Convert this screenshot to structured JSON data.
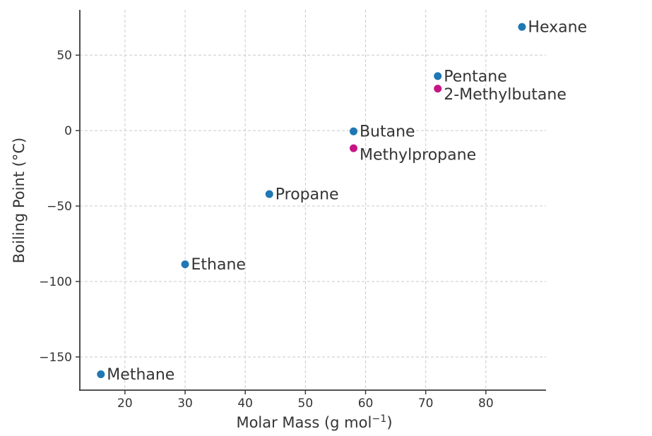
{
  "chart_data": {
    "type": "scatter",
    "title": "",
    "xlabel_full": "Molar Mass (g mol−1)",
    "xlabel_main": "Molar Mass (g mol",
    "xlabel_sup": "−1",
    "xlabel_close": ")",
    "ylabel": "Boiling Point (°C)",
    "xlim": [
      12.5,
      90
    ],
    "ylim": [
      -172,
      80
    ],
    "grid": true,
    "grid_on": "both",
    "legend": "none",
    "grid_color": "#c9c9c9",
    "axis_color": "#3a3a3a",
    "text_color": "#343434",
    "background_color": "#ffffff",
    "marker_radius_px": 5.5,
    "series_colors": {
      "straight_chain": "#1f77b4",
      "branched": "#c71585"
    },
    "x_ticks": [
      {
        "value": 20,
        "label": "20"
      },
      {
        "value": 30,
        "label": "30"
      },
      {
        "value": 40,
        "label": "40"
      },
      {
        "value": 50,
        "label": "50"
      },
      {
        "value": 60,
        "label": "60"
      },
      {
        "value": 70,
        "label": "70"
      },
      {
        "value": 80,
        "label": "80"
      }
    ],
    "y_ticks": [
      {
        "value": 50,
        "label": "50"
      },
      {
        "value": 0,
        "label": "0"
      },
      {
        "value": -50,
        "label": "−50"
      },
      {
        "value": -100,
        "label": "−100"
      },
      {
        "value": -150,
        "label": "−150"
      }
    ],
    "points": [
      {
        "label": "Methane",
        "molar_mass": 16,
        "boiling_point": -161.5,
        "group": "straight_chain",
        "color": "#1f77b4",
        "label_dy": 0
      },
      {
        "label": "Ethane",
        "molar_mass": 30,
        "boiling_point": -88.6,
        "group": "straight_chain",
        "color": "#1f77b4",
        "label_dy": 0
      },
      {
        "label": "Propane",
        "molar_mass": 44,
        "boiling_point": -42.1,
        "group": "straight_chain",
        "color": "#1f77b4",
        "label_dy": 0
      },
      {
        "label": "Butane",
        "molar_mass": 58,
        "boiling_point": -0.5,
        "group": "straight_chain",
        "color": "#1f77b4",
        "label_dy": 0
      },
      {
        "label": "Methylpropane",
        "molar_mass": 58,
        "boiling_point": -11.7,
        "group": "branched",
        "color": "#c71585",
        "label_dy": 9
      },
      {
        "label": "Pentane",
        "molar_mass": 72,
        "boiling_point": 36.1,
        "group": "straight_chain",
        "color": "#1f77b4",
        "label_dy": 0
      },
      {
        "label": "2-Methylbutane",
        "molar_mass": 72,
        "boiling_point": 27.8,
        "group": "branched",
        "color": "#c71585",
        "label_dy": 8
      },
      {
        "label": "Hexane",
        "molar_mass": 86,
        "boiling_point": 68.7,
        "group": "straight_chain",
        "color": "#1f77b4",
        "label_dy": 0
      }
    ]
  }
}
